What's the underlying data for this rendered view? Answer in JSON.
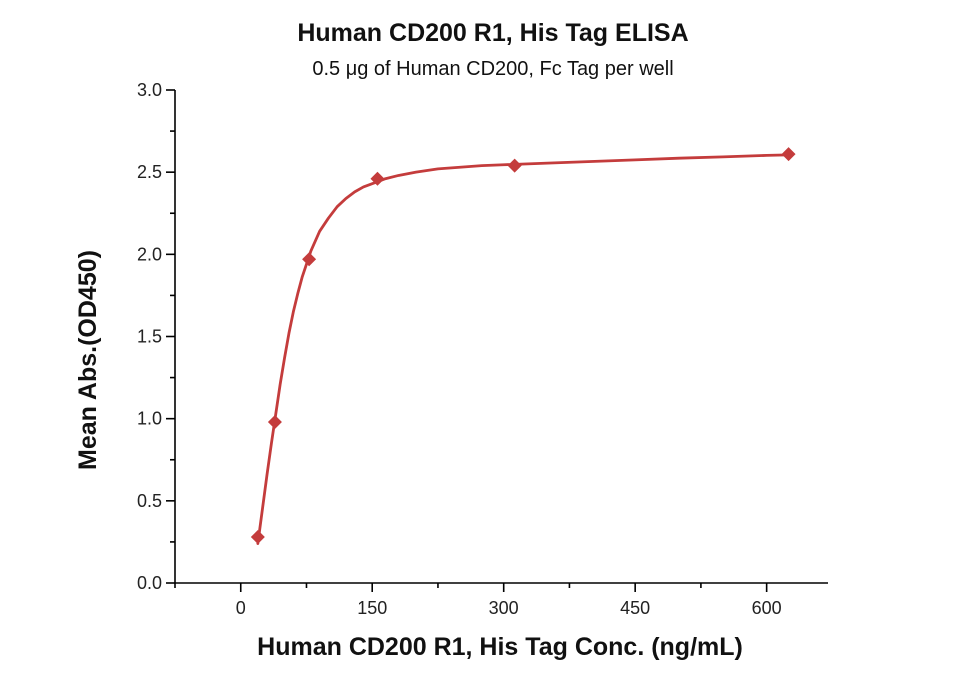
{
  "chart_data": {
    "type": "scatter",
    "title": "Human CD200 R1, His Tag ELISA",
    "subtitle": "0.5 μg of Human CD200, Fc Tag per well",
    "xlabel": "Human CD200 R1, His Tag Conc. (ng/mL)",
    "ylabel": "Mean Abs.(OD450)",
    "xlim": [
      -75,
      670
    ],
    "ylim": [
      0,
      3.0
    ],
    "x_ticks": [
      0,
      150,
      300,
      450,
      600
    ],
    "y_ticks": [
      0.0,
      0.5,
      1.0,
      1.5,
      2.0,
      2.5,
      3.0
    ],
    "x_tick_labels": [
      "0",
      "150",
      "300",
      "450",
      "600"
    ],
    "y_tick_labels": [
      "0.0",
      "0.5",
      "1.0",
      "1.5",
      "2.0",
      "2.5",
      "3.0"
    ],
    "grid": false,
    "color": "#c43c3c",
    "series": [
      {
        "marker": "diamond",
        "x": [
          19.5,
          39,
          78,
          156,
          312.5,
          625
        ],
        "y": [
          0.28,
          0.98,
          1.97,
          2.46,
          2.54,
          2.61
        ]
      }
    ],
    "fit_curve": {
      "x": [
        19.5,
        25,
        30,
        35,
        40,
        45,
        50,
        55,
        60,
        65,
        70,
        80,
        90,
        100,
        110,
        120,
        130,
        140,
        150,
        165,
        180,
        200,
        225,
        250,
        275,
        300,
        350,
        400,
        450,
        500,
        550,
        600,
        625
      ],
      "y": [
        0.24,
        0.46,
        0.66,
        0.85,
        1.03,
        1.21,
        1.37,
        1.52,
        1.65,
        1.76,
        1.86,
        2.02,
        2.14,
        2.22,
        2.29,
        2.34,
        2.38,
        2.41,
        2.43,
        2.46,
        2.48,
        2.5,
        2.52,
        2.53,
        2.54,
        2.545,
        2.555,
        2.565,
        2.575,
        2.585,
        2.593,
        2.602,
        2.605
      ]
    }
  }
}
